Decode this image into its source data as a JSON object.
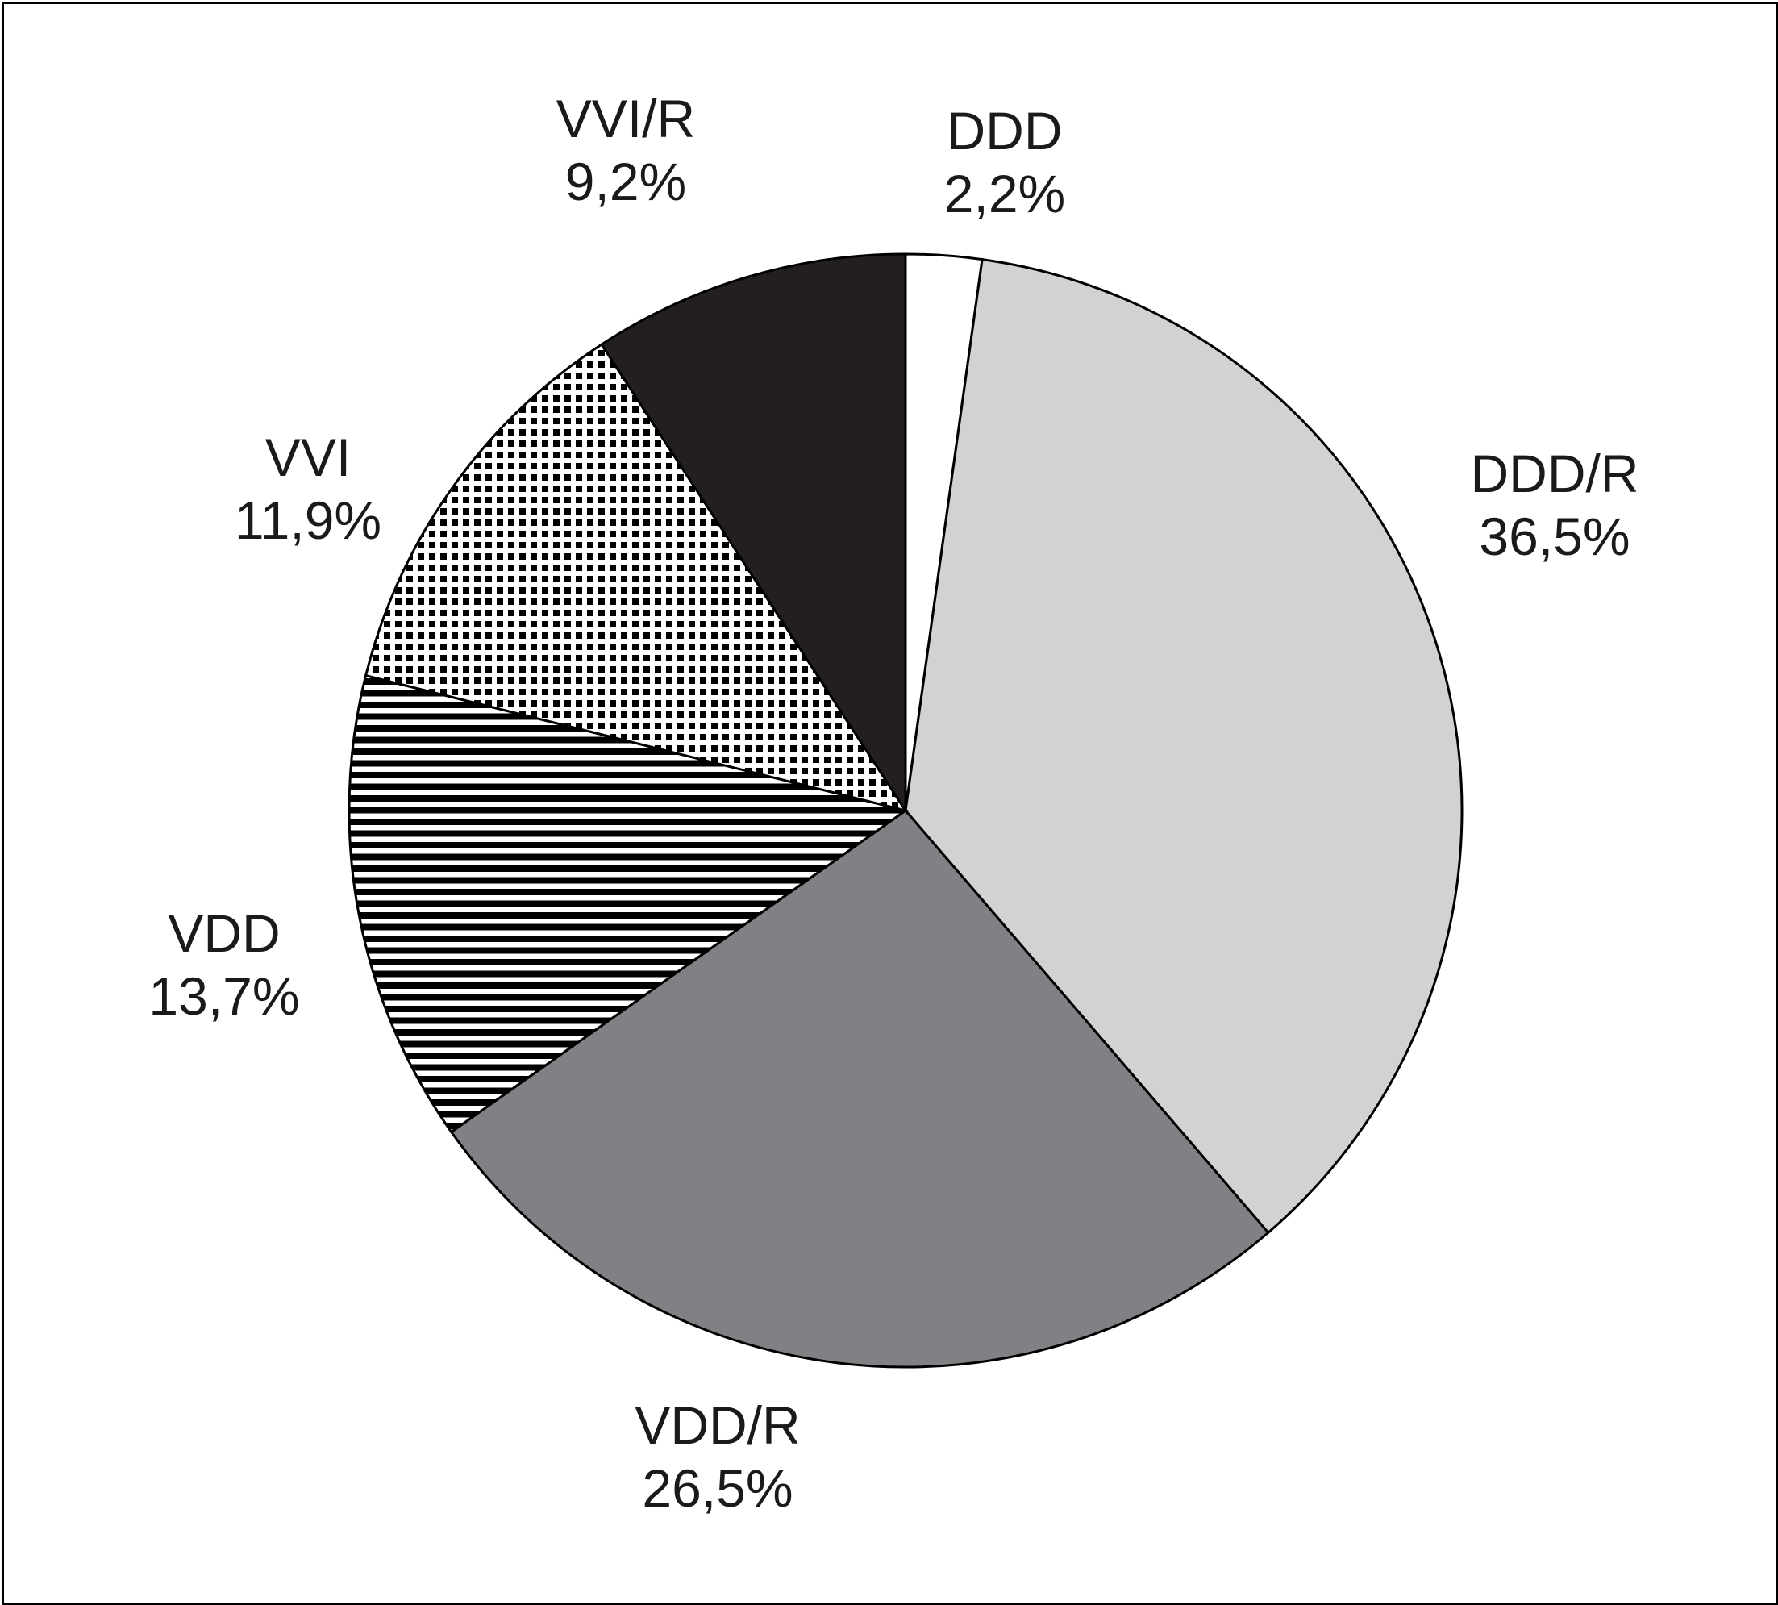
{
  "chart_data": {
    "type": "pie",
    "title": "",
    "start": "top",
    "direction": "clockwise",
    "legend": "none",
    "slices": [
      {
        "label": "DDD",
        "value_label": "2,2%",
        "value": 2.2,
        "fill": "#ffffff",
        "pattern": "solid"
      },
      {
        "label": "DDD/R",
        "value_label": "36,5%",
        "value": 36.5,
        "fill": "#d1d2d4",
        "pattern": "solid"
      },
      {
        "label": "VDD/R",
        "value_label": "26,5%",
        "value": 26.5,
        "fill": "#808185",
        "pattern": "solid"
      },
      {
        "label": "VDD",
        "value_label": "13,7%",
        "value": 13.7,
        "fill": "#ffffff",
        "pattern": "horizontal-stripes"
      },
      {
        "label": "VVI",
        "value_label": "11,9%",
        "value": 11.9,
        "fill": "#ffffff",
        "pattern": "dots"
      },
      {
        "label": "VVI/R",
        "value_label": "9,2%",
        "value": 9.2,
        "fill": "#231f20",
        "pattern": "solid"
      }
    ]
  }
}
